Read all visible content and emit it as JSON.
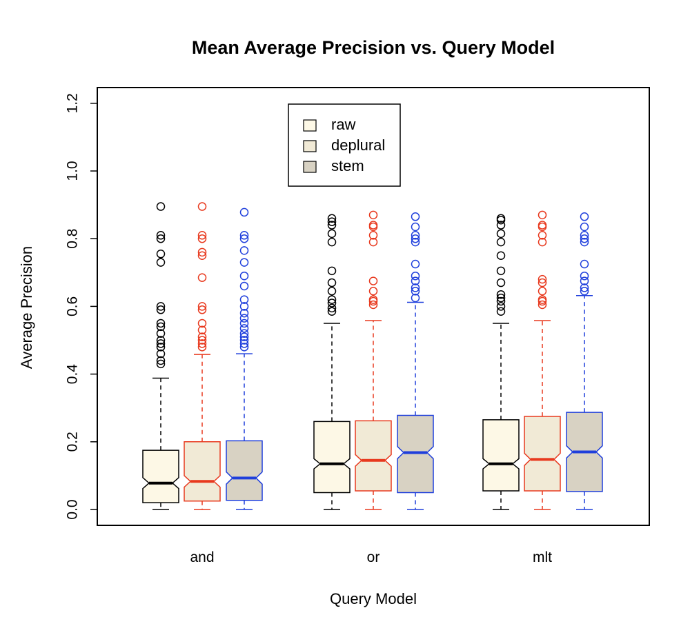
{
  "chart_data": {
    "type": "boxplot",
    "title": "Mean Average Precision vs. Query Model",
    "xlabel": "Query Model",
    "ylabel": "Average Precision",
    "ylim": [
      0.0,
      1.2
    ],
    "yticks": [
      "0.0",
      "0.2",
      "0.4",
      "0.6",
      "0.8",
      "1.0",
      "1.2"
    ],
    "categories": [
      "and",
      "or",
      "mlt"
    ],
    "notched": true,
    "grid": false,
    "legend_position": "top-center",
    "legend": [
      {
        "label": "raw",
        "fill": "#fdf8e6"
      },
      {
        "label": "deplural",
        "fill": "#f1ead6"
      },
      {
        "label": "stem",
        "fill": "#d8d2c3"
      }
    ],
    "series": [
      {
        "name": "raw",
        "color": "#000000",
        "fill": "#fdf8e6",
        "boxes": [
          {
            "whisker_low": 0.0,
            "q1": 0.02,
            "median": 0.078,
            "q3": 0.175,
            "whisker_high": 0.388,
            "notch_low": 0.062,
            "notch_high": 0.094,
            "outliers": [
              0.43,
              0.44,
              0.46,
              0.48,
              0.49,
              0.5,
              0.52,
              0.54,
              0.55,
              0.59,
              0.6,
              0.73,
              0.755,
              0.8,
              0.81,
              0.895
            ]
          },
          {
            "whisker_low": 0.0,
            "q1": 0.05,
            "median": 0.135,
            "q3": 0.26,
            "whisker_high": 0.55,
            "notch_low": 0.12,
            "notch_high": 0.15,
            "outliers": [
              0.585,
              0.595,
              0.61,
              0.62,
              0.645,
              0.67,
              0.705,
              0.79,
              0.815,
              0.84,
              0.85,
              0.86
            ]
          },
          {
            "whisker_low": 0.0,
            "q1": 0.055,
            "median": 0.135,
            "q3": 0.265,
            "whisker_high": 0.55,
            "notch_low": 0.12,
            "notch_high": 0.15,
            "outliers": [
              0.585,
              0.6,
              0.615,
              0.625,
              0.635,
              0.67,
              0.705,
              0.75,
              0.79,
              0.815,
              0.84,
              0.855,
              0.86
            ]
          }
        ]
      },
      {
        "name": "deplural",
        "color": "#e8391e",
        "fill": "#f1ead6",
        "boxes": [
          {
            "whisker_low": 0.0,
            "q1": 0.025,
            "median": 0.083,
            "q3": 0.2,
            "whisker_high": 0.458,
            "notch_low": 0.066,
            "notch_high": 0.1,
            "outliers": [
              0.48,
              0.49,
              0.5,
              0.51,
              0.53,
              0.55,
              0.59,
              0.6,
              0.685,
              0.75,
              0.76,
              0.8,
              0.81,
              0.895
            ]
          },
          {
            "whisker_low": 0.0,
            "q1": 0.055,
            "median": 0.145,
            "q3": 0.262,
            "whisker_high": 0.558,
            "notch_low": 0.128,
            "notch_high": 0.162,
            "outliers": [
              0.605,
              0.615,
              0.62,
              0.645,
              0.675,
              0.79,
              0.81,
              0.835,
              0.84,
              0.87
            ]
          },
          {
            "whisker_low": 0.0,
            "q1": 0.055,
            "median": 0.148,
            "q3": 0.275,
            "whisker_high": 0.558,
            "notch_low": 0.13,
            "notch_high": 0.166,
            "outliers": [
              0.605,
              0.615,
              0.62,
              0.645,
              0.67,
              0.68,
              0.79,
              0.81,
              0.835,
              0.84,
              0.87
            ]
          }
        ]
      },
      {
        "name": "stem",
        "color": "#1f3fdc",
        "fill": "#d8d2c3",
        "boxes": [
          {
            "whisker_low": 0.0,
            "q1": 0.027,
            "median": 0.093,
            "q3": 0.203,
            "whisker_high": 0.46,
            "notch_low": 0.075,
            "notch_high": 0.111,
            "outliers": [
              0.48,
              0.49,
              0.5,
              0.51,
              0.52,
              0.535,
              0.55,
              0.565,
              0.58,
              0.6,
              0.62,
              0.66,
              0.69,
              0.73,
              0.765,
              0.8,
              0.81,
              0.878
            ]
          },
          {
            "whisker_low": 0.0,
            "q1": 0.05,
            "median": 0.168,
            "q3": 0.278,
            "whisker_high": 0.612,
            "notch_low": 0.15,
            "notch_high": 0.186,
            "outliers": [
              0.625,
              0.645,
              0.655,
              0.675,
              0.69,
              0.725,
              0.79,
              0.8,
              0.81,
              0.835,
              0.865
            ]
          },
          {
            "whisker_low": 0.0,
            "q1": 0.053,
            "median": 0.17,
            "q3": 0.287,
            "whisker_high": 0.632,
            "notch_low": 0.152,
            "notch_high": 0.188,
            "outliers": [
              0.645,
              0.655,
              0.675,
              0.69,
              0.725,
              0.79,
              0.8,
              0.81,
              0.835,
              0.865
            ]
          }
        ]
      }
    ]
  }
}
